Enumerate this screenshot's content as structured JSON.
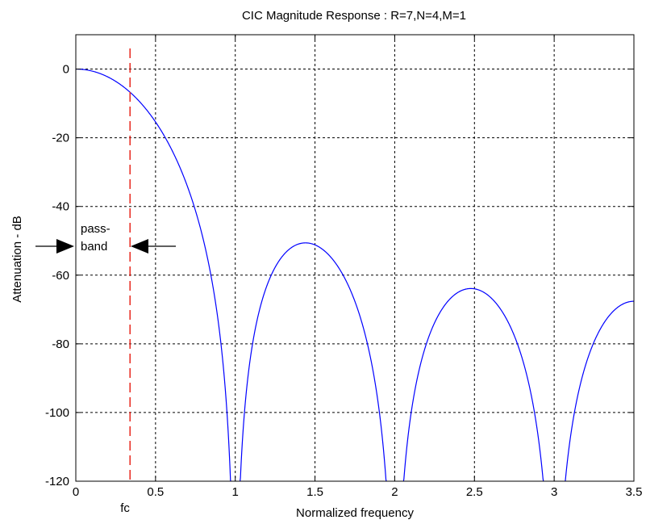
{
  "chart_data": {
    "type": "line",
    "title": "CIC Magnitude Response : R=7,N=4,M=1",
    "xlabel": "Normalized frequency",
    "ylabel": "Attenuation - dB",
    "xlim": [
      0,
      3.5
    ],
    "ylim": [
      -120,
      10
    ],
    "x_ticks": [
      0,
      0.5,
      1,
      1.5,
      2,
      2.5,
      3,
      3.5
    ],
    "x_tick_labels": [
      "0",
      "0.5",
      "1",
      "1.5",
      "2",
      "2.5",
      "3",
      "3.5"
    ],
    "y_ticks": [
      0,
      -20,
      -40,
      -60,
      -80,
      -100,
      -120
    ],
    "y_tick_labels": [
      "0",
      "-20",
      "-40",
      "-60",
      "-80",
      "-100",
      "-120"
    ],
    "grid": true,
    "series": [
      {
        "color": "#0000ff",
        "params": {
          "R": 7,
          "N": 4,
          "M": 1
        }
      }
    ],
    "cutoff_line": {
      "x": 0.34,
      "color": "#e8281e",
      "style": "dashed",
      "label": "fc"
    },
    "annotations": {
      "passband_line1": "pass-",
      "passband_line2": "band"
    }
  }
}
